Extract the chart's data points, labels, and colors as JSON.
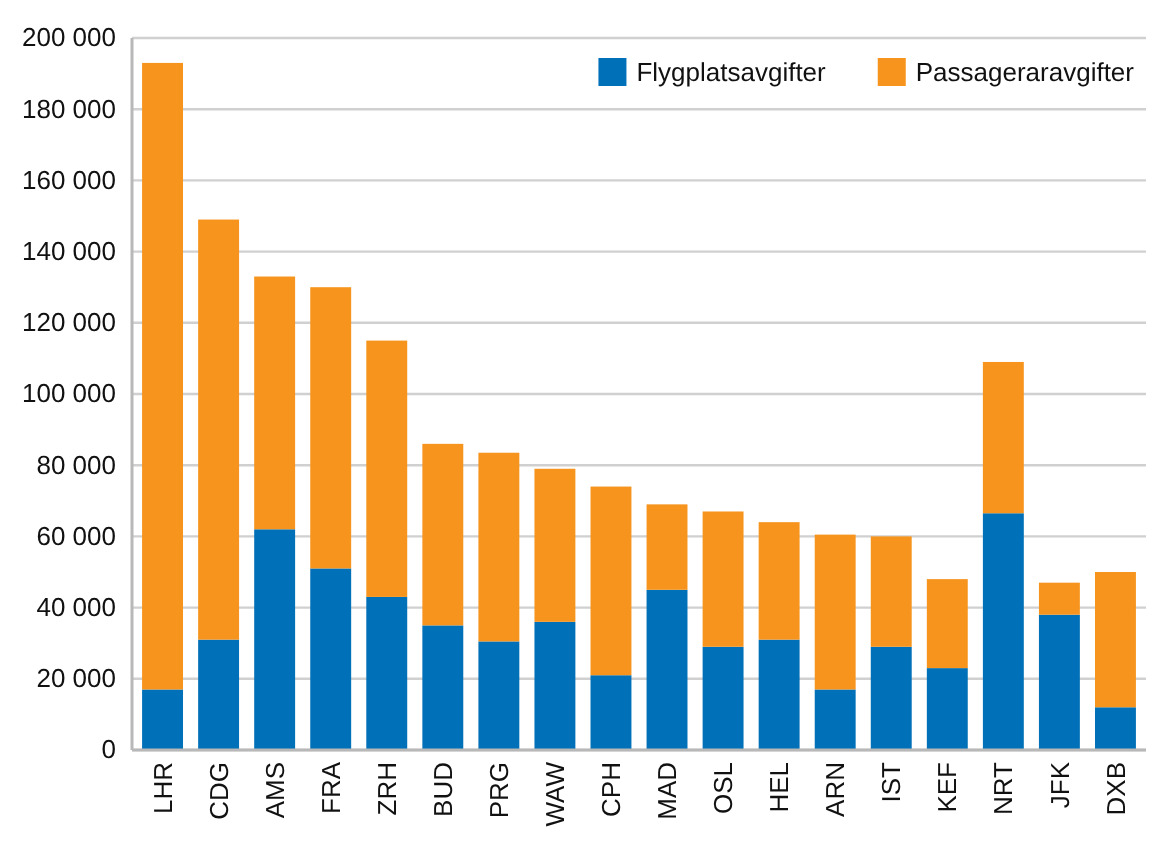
{
  "chart_data": {
    "type": "bar",
    "stacked": true,
    "categories": [
      "LHR",
      "CDG",
      "AMS",
      "FRA",
      "ZRH",
      "BUD",
      "PRG",
      "WAW",
      "CPH",
      "MAD",
      "OSL",
      "HEL",
      "ARN",
      "IST",
      "KEF",
      "NRT",
      "JFK",
      "DXB"
    ],
    "series": [
      {
        "name": "Flygplatsavgifter",
        "color": "#0070b8",
        "values": [
          17000,
          31000,
          62000,
          51000,
          43000,
          35000,
          30500,
          36000,
          21000,
          45000,
          29000,
          31000,
          17000,
          29000,
          23000,
          66500,
          38000,
          12000
        ]
      },
      {
        "name": "Passageraravgifter",
        "color": "#f7941d",
        "values": [
          176000,
          118000,
          71000,
          79000,
          72000,
          51000,
          53000,
          43000,
          53000,
          24000,
          38000,
          33000,
          43500,
          31000,
          25000,
          42500,
          9000,
          38000
        ]
      }
    ],
    "ylim": [
      0,
      200000
    ],
    "yticks": [
      0,
      {
        "value": 20000,
        "label": "20 000"
      },
      {
        "value": 40000,
        "label": "40 000"
      },
      {
        "value": 60000,
        "label": "60 000"
      },
      {
        "value": 80000,
        "label": "80 000"
      },
      {
        "value": 100000,
        "label": "100 000"
      },
      {
        "value": 120000,
        "label": "120 000"
      },
      {
        "value": 140000,
        "label": "140 000"
      },
      {
        "value": 160000,
        "label": "160 000"
      },
      {
        "value": 180000,
        "label": "180 000"
      },
      {
        "value": 200000,
        "label": "200 000"
      }
    ],
    "grid": "y",
    "legend": "top right"
  }
}
